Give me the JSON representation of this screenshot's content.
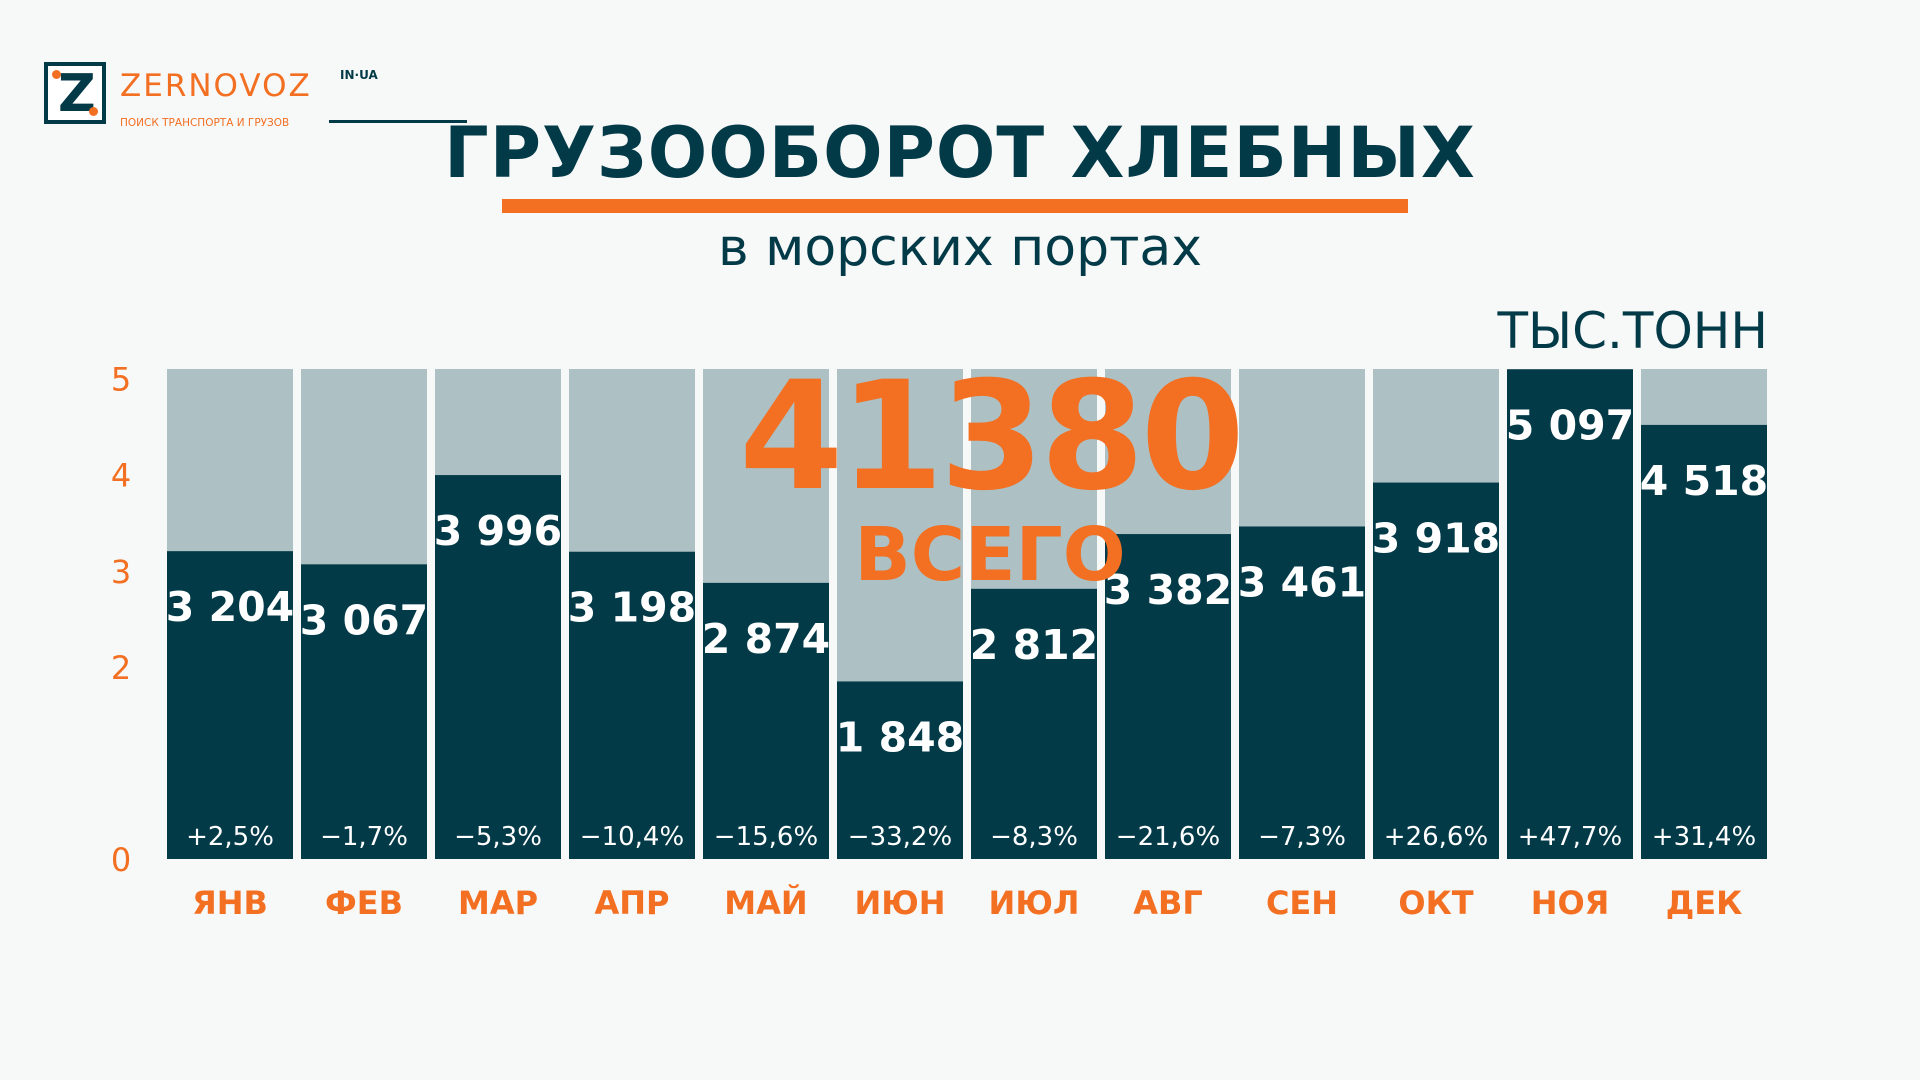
{
  "logo": {
    "letter": "Z",
    "name": "ZERNOVOZ",
    "domain": "IN·UA",
    "tagline": "ПОИСК ТРАНСПОРТА И ГРУЗОВ"
  },
  "header": {
    "title": "ГРУЗООБОРОТ ХЛЕБНЫХ",
    "subtitle": "в морских портах",
    "unit": "ТЫС.ТОНН"
  },
  "total": {
    "value": "41380",
    "label": "ВСЕГО"
  },
  "colors": {
    "accent": "#f36f21",
    "bar": "#033a48",
    "bar_background": "#adc0c4",
    "background": "#f7f8f8"
  },
  "chart_data": {
    "type": "bar",
    "categories": [
      "ЯНВ",
      "ФЕВ",
      "МАР",
      "АПР",
      "МАЙ",
      "ИЮН",
      "ИЮЛ",
      "АВГ",
      "СЕН",
      "ОКТ",
      "НОЯ",
      "ДЕК"
    ],
    "values": [
      3204,
      3067,
      3996,
      3198,
      2874,
      1848,
      2812,
      3382,
      3461,
      3918,
      5097,
      4518
    ],
    "value_labels": [
      "3 204",
      "3 067",
      "3 996",
      "3 198",
      "2 874",
      "1 848",
      "2 812",
      "3 382",
      "3 461",
      "3 918",
      "5 097",
      "4 518"
    ],
    "change_labels": [
      "+2,5%",
      "−1,7%",
      "−5,3%",
      "−10,4%",
      "−15,6%",
      "−33,2%",
      "−8,3%",
      "−21,6%",
      "−7,3%",
      "+26,6%",
      "+47,7%",
      "+31,4%"
    ],
    "yticks": [
      "0",
      "2",
      "3",
      "4",
      "5"
    ],
    "ylim": [
      0,
      5100
    ],
    "grid": false,
    "legend": "none"
  }
}
